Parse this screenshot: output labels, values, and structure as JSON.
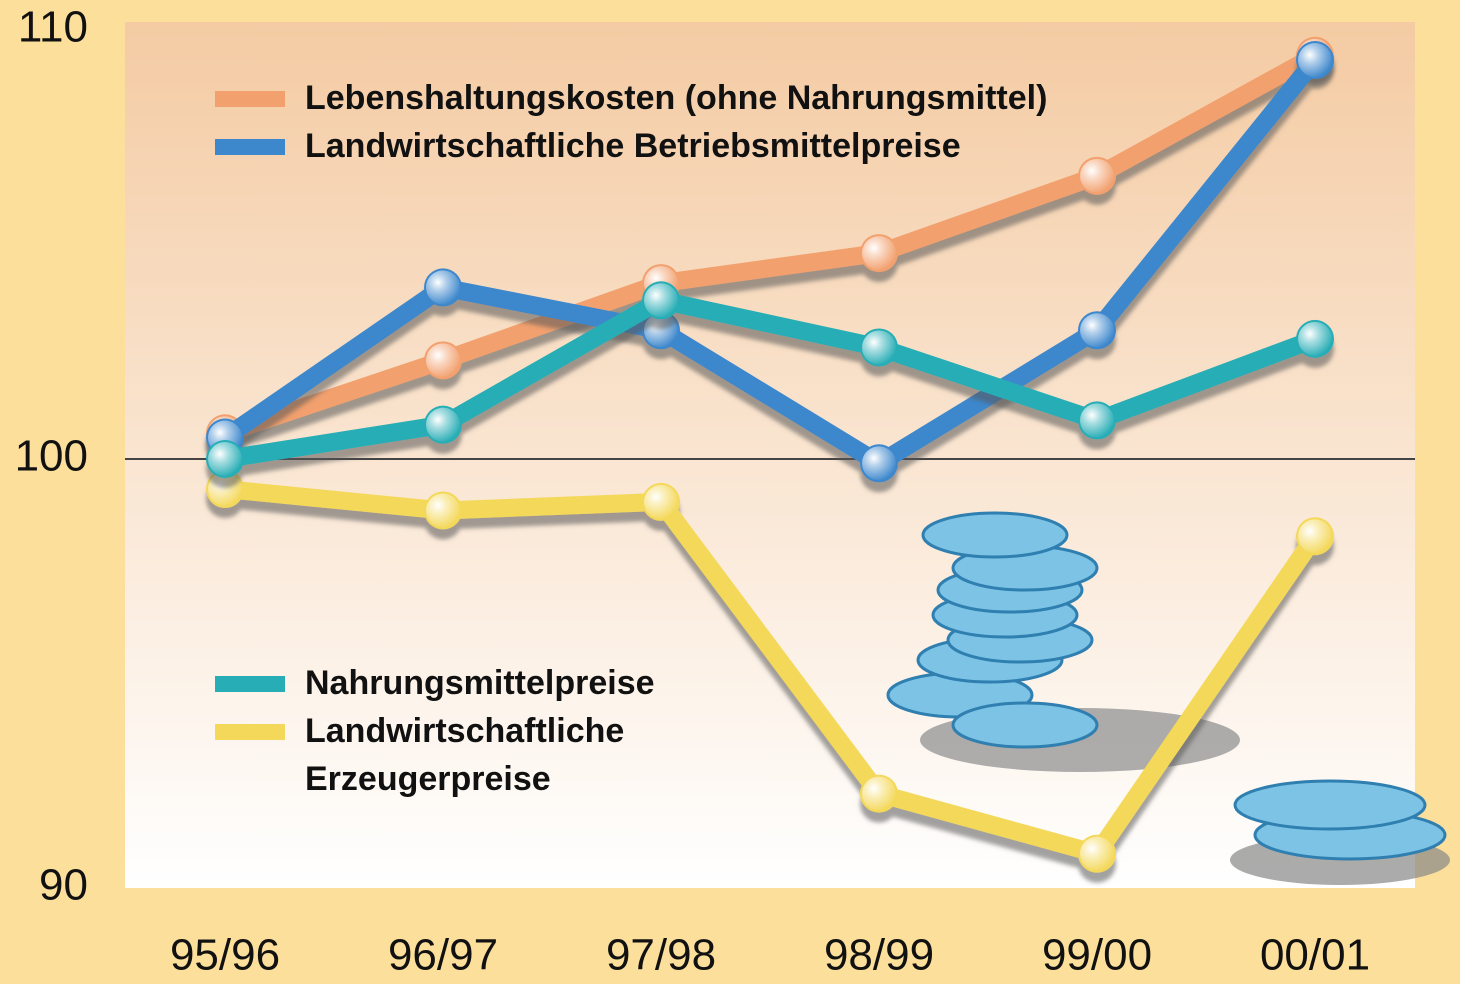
{
  "chart_data": {
    "type": "line",
    "categories": [
      "95/96",
      "96/97",
      "97/98",
      "98/99",
      "99/00",
      "00/01"
    ],
    "series": [
      {
        "name": "Lebenshaltungskosten (ohne Nahrungsmittel)",
        "color": "#f2a06e",
        "values": [
          100.6,
          102.3,
          104.1,
          104.8,
          106.6,
          109.4
        ]
      },
      {
        "name": "Landwirtschaftliche Betriebsmittelpreise",
        "color": "#3d87cc",
        "values": [
          100.5,
          104.0,
          103.0,
          99.9,
          103.0,
          109.3
        ]
      },
      {
        "name": "Nahrungsmittelpreise",
        "color": "#27adb5",
        "values": [
          100.0,
          100.8,
          103.7,
          102.6,
          100.9,
          102.8
        ]
      },
      {
        "name": "Landwirtschaftliche Erzeugerpreise",
        "color": "#f4d85a",
        "values": [
          99.3,
          98.8,
          99.0,
          92.2,
          90.8,
          98.2
        ]
      }
    ],
    "ylim": [
      90,
      110
    ],
    "yticks": [
      90,
      100,
      110
    ]
  }
}
